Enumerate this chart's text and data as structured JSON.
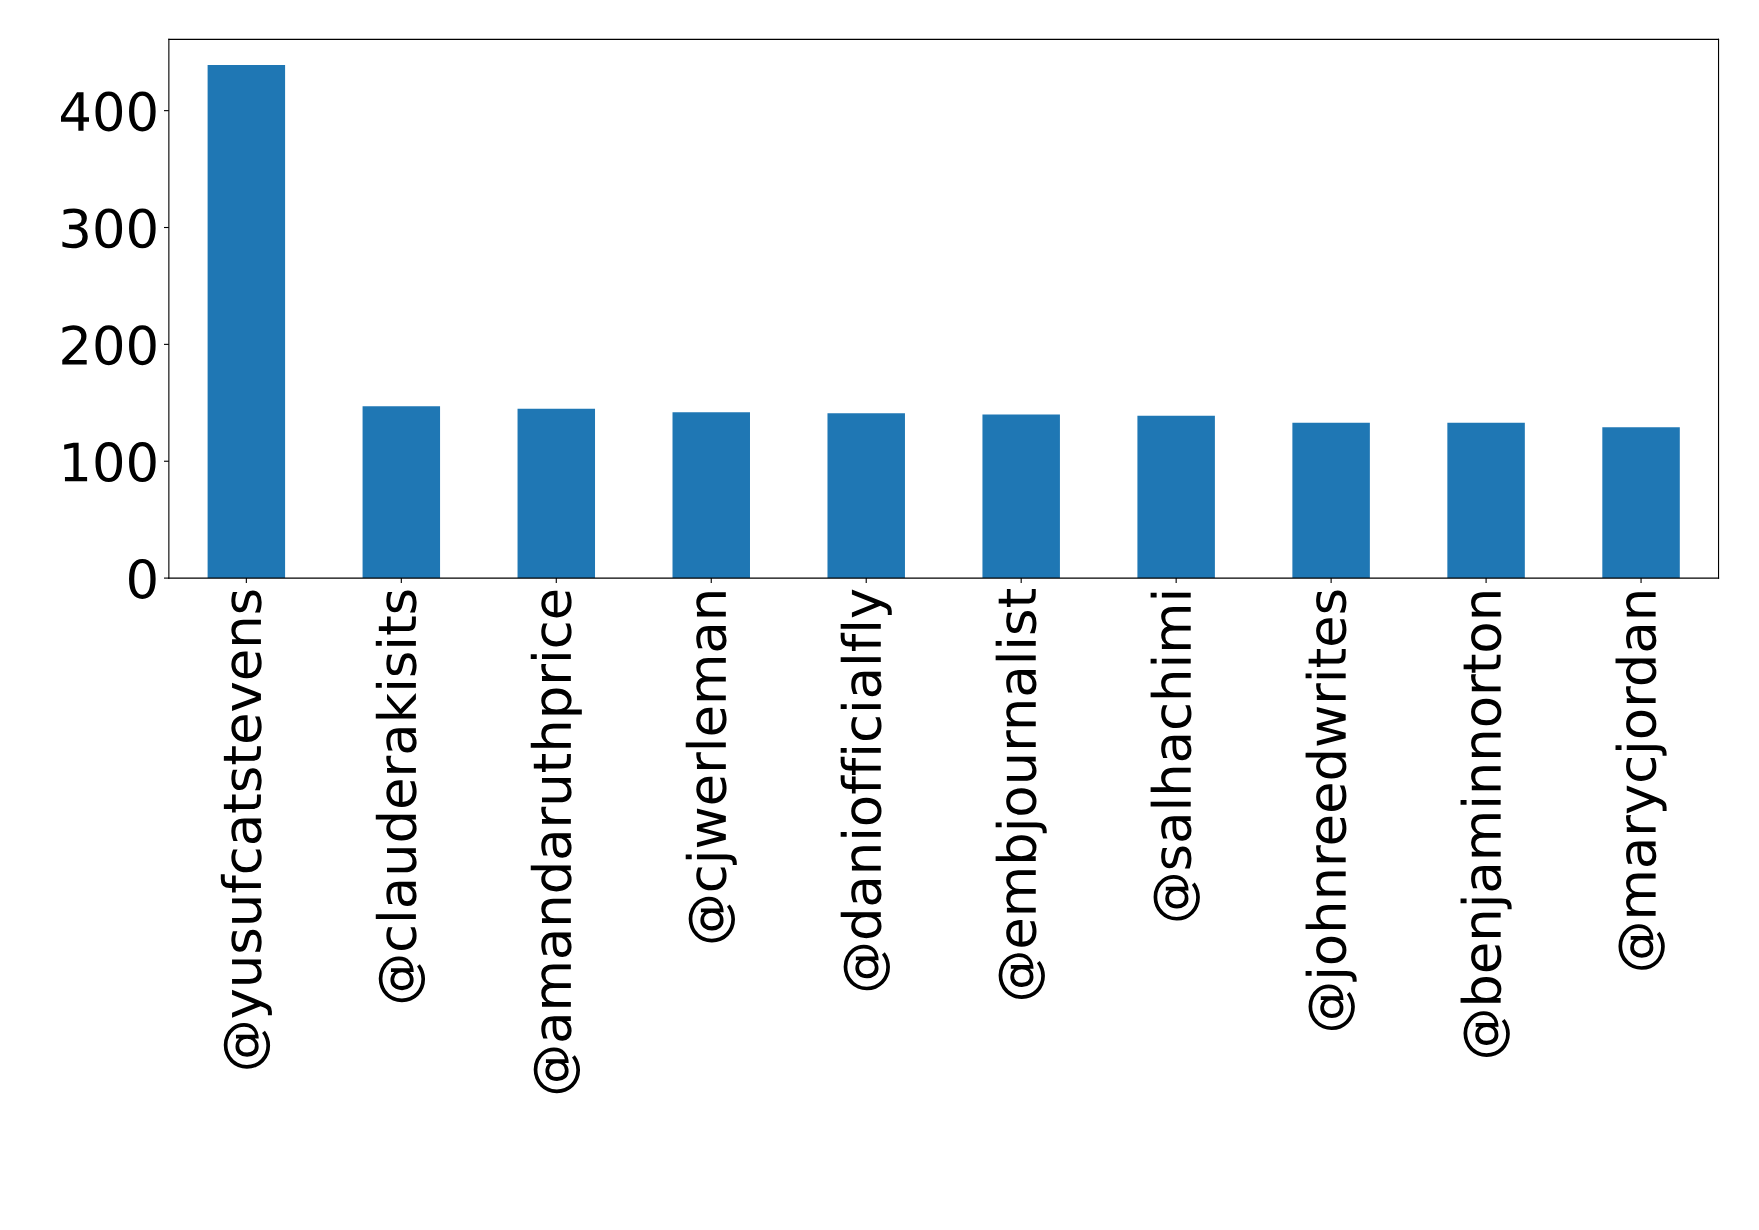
{
  "chart_data": {
    "type": "bar",
    "categories": [
      "@yusufcatstevens",
      "@clauderakisits",
      "@amandaruthprice",
      "@cjwerleman",
      "@daniofficialfly",
      "@embjournalist",
      "@salhachimi",
      "@johnreedwrites",
      "@benjaminnorton",
      "@marycjordan"
    ],
    "values": [
      439,
      147,
      145,
      142,
      141,
      140,
      139,
      133,
      133,
      129
    ],
    "color": "#1f77b4",
    "ylim": [
      0,
      461
    ],
    "yticks": [
      0,
      100,
      200,
      300,
      400
    ],
    "grid": false,
    "legend": false
  }
}
